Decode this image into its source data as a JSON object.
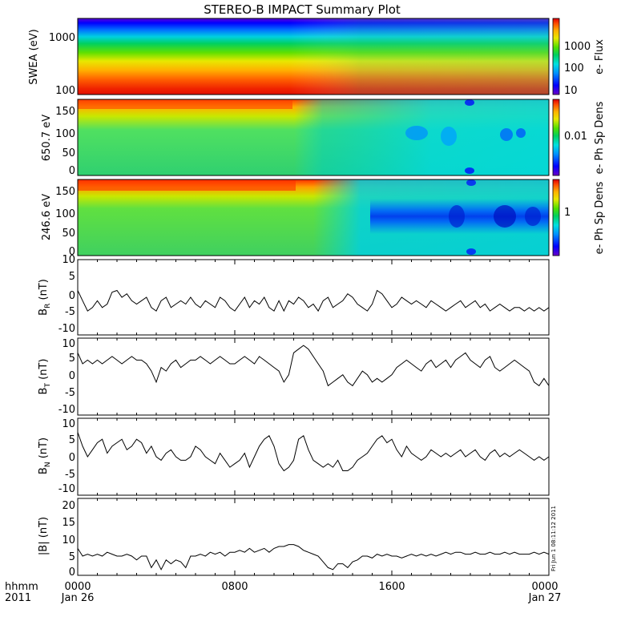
{
  "title": "STEREO-B IMPACT Summary Plot",
  "side_stamp": "Fri Jun 1 08:11:12 2011",
  "x_axis": {
    "row1_label": "hhmm",
    "row2_label": "2011",
    "tick_top": [
      "0000",
      "0800",
      "1600",
      "0000"
    ],
    "tick_bottom": [
      "Jan 26",
      "",
      "",
      "Jan 27"
    ],
    "range_hours": [
      0,
      24
    ]
  },
  "colors": {
    "line": "#000000",
    "colormap": [
      "#6a00c8",
      "#0000ff",
      "#0090ff",
      "#00e0e0",
      "#00d060",
      "#50e000",
      "#e8e800",
      "#ffb000",
      "#ff5000",
      "#e00000"
    ]
  },
  "chart_data": [
    {
      "type": "heatmap",
      "ylabel": "SWEA (eV)",
      "yscale": "log",
      "yticks": [
        "1000",
        "100"
      ],
      "ylim": [
        100,
        2000
      ],
      "colorbar_label": "e- Flux",
      "colorbar_ticks": [
        "1000",
        "100",
        "10"
      ],
      "description": "Electron flux spectrogram; highest flux at low energies (~100-300 eV, red/orange), decreasing to blue/violet above ~1500 eV; reduced flux after ~13:00."
    },
    {
      "type": "heatmap",
      "ylabel": "650.7 eV",
      "yticks": [
        "150",
        "100",
        "50",
        "0"
      ],
      "ylim": [
        0,
        180
      ],
      "colorbar_label": "e- Ph Sp Dens",
      "colorbar_ticks": [
        "0.01"
      ],
      "description": "Pitch angle distribution at 650.7 eV; red/orange near 180 deg before ~11:30, green/cyan afterwards with blue patches around 20:00-23:00."
    },
    {
      "type": "heatmap",
      "ylabel": "246.6 eV",
      "yticks": [
        "150",
        "100",
        "50",
        "0"
      ],
      "ylim": [
        0,
        180
      ],
      "colorbar_label": "e- Ph Sp Dens",
      "colorbar_ticks": [
        "1"
      ],
      "description": "Pitch angle distribution at 246.6 eV; red near 180 deg before ~12:00, blue band around 90 deg after ~15:00."
    },
    {
      "type": "line",
      "ylabel_main": "B",
      "ylabel_sub": "R",
      "ylabel_unit": " (nT)",
      "yticks": [
        "10",
        "5",
        "0",
        "-5",
        "-10"
      ],
      "ylim": [
        -12,
        10
      ],
      "series": [
        {
          "x": [
            0,
            0.25,
            0.5,
            0.75,
            1,
            1.25,
            1.5,
            1.75,
            2,
            2.25,
            2.5,
            2.75,
            3,
            3.25,
            3.5,
            3.75,
            4,
            4.25,
            4.5,
            4.75,
            5,
            5.25,
            5.5,
            5.75,
            6,
            6.25,
            6.5,
            6.75,
            7,
            7.25,
            7.5,
            7.75,
            8,
            8.25,
            8.5,
            8.75,
            9,
            9.25,
            9.5,
            9.75,
            10,
            10.25,
            10.5,
            10.75,
            11,
            11.25,
            11.5,
            11.75,
            12,
            12.25,
            12.5,
            12.75,
            13,
            13.25,
            13.5,
            13.75,
            14,
            14.25,
            14.5,
            14.75,
            15,
            15.25,
            15.5,
            15.75,
            16,
            16.25,
            16.5,
            16.75,
            17,
            17.25,
            17.5,
            17.75,
            18,
            18.25,
            18.5,
            18.75,
            19,
            19.25,
            19.5,
            19.75,
            20,
            20.25,
            20.5,
            20.75,
            21,
            21.25,
            21.5,
            21.75,
            22,
            22.25,
            22.5,
            22.75,
            23,
            23.25,
            23.5,
            23.75,
            24
          ],
          "y": [
            1,
            -2,
            -5,
            -4,
            -2,
            -4,
            -3,
            0.5,
            1,
            -1,
            0,
            -2,
            -3,
            -2,
            -1,
            -4,
            -5,
            -2,
            -1,
            -4,
            -3,
            -2,
            -3,
            -1,
            -3,
            -4,
            -2,
            -3,
            -4,
            -1,
            -2,
            -4,
            -5,
            -3,
            -1,
            -4,
            -2,
            -3,
            -1,
            -4,
            -5,
            -2,
            -5,
            -2,
            -3,
            -1,
            -2,
            -4,
            -3,
            -5,
            -2,
            -1,
            -4,
            -3,
            -2,
            0,
            -1,
            -3,
            -4,
            -5,
            -3,
            1,
            0,
            -2,
            -4,
            -3,
            -1,
            -2,
            -3,
            -2,
            -3,
            -4,
            -2,
            -3,
            -4,
            -5,
            -4,
            -3,
            -2,
            -4,
            -3,
            -2,
            -4,
            -3,
            -5,
            -4,
            -3,
            -4,
            -5,
            -4,
            -4,
            -5,
            -4,
            -5,
            -4,
            -5,
            -4
          ]
        }
      ]
    },
    {
      "type": "line",
      "ylabel_main": "B",
      "ylabel_sub": "T",
      "ylabel_unit": " (nT)",
      "yticks": [
        "10",
        "5",
        "0",
        "-5",
        "-10"
      ],
      "ylim": [
        -11,
        10
      ],
      "series": [
        {
          "x": [
            0,
            0.25,
            0.5,
            0.75,
            1,
            1.25,
            1.5,
            1.75,
            2,
            2.25,
            2.5,
            2.75,
            3,
            3.25,
            3.5,
            3.75,
            4,
            4.25,
            4.5,
            4.75,
            5,
            5.25,
            5.5,
            5.75,
            6,
            6.25,
            6.5,
            6.75,
            7,
            7.25,
            7.5,
            7.75,
            8,
            8.25,
            8.5,
            8.75,
            9,
            9.25,
            9.5,
            9.75,
            10,
            10.25,
            10.5,
            10.75,
            11,
            11.25,
            11.5,
            11.75,
            12,
            12.25,
            12.5,
            12.75,
            13,
            13.25,
            13.5,
            13.75,
            14,
            14.25,
            14.5,
            14.75,
            15,
            15.25,
            15.5,
            15.75,
            16,
            16.25,
            16.5,
            16.75,
            17,
            17.25,
            17.5,
            17.75,
            18,
            18.25,
            18.5,
            18.75,
            19,
            19.25,
            19.5,
            19.75,
            20,
            20.25,
            20.5,
            20.75,
            21,
            21.25,
            21.5,
            21.75,
            22,
            22.25,
            22.5,
            22.75,
            23,
            23.25,
            23.5,
            23.75,
            24
          ],
          "y": [
            6,
            3,
            4,
            3,
            4,
            3,
            4,
            5,
            4,
            3,
            4,
            5,
            4,
            4,
            3,
            1,
            -2,
            2,
            1,
            3,
            4,
            2,
            3,
            4,
            4,
            5,
            4,
            3,
            4,
            5,
            4,
            3,
            3,
            4,
            5,
            4,
            3,
            5,
            4,
            3,
            2,
            1,
            -2,
            0,
            6,
            7,
            8,
            7,
            5,
            3,
            1,
            -3,
            -2,
            -1,
            0,
            -2,
            -3,
            -1,
            1,
            0,
            -2,
            -1,
            -2,
            -1,
            0,
            2,
            3,
            4,
            3,
            2,
            1,
            3,
            4,
            2,
            3,
            4,
            2,
            4,
            5,
            6,
            4,
            3,
            2,
            4,
            5,
            2,
            1,
            2,
            3,
            4,
            3,
            2,
            1,
            -2,
            -3,
            -1,
            -3
          ]
        }
      ]
    },
    {
      "type": "line",
      "ylabel_main": "B",
      "ylabel_sub": "N",
      "ylabel_unit": " (nT)",
      "yticks": [
        "10",
        "5",
        "0",
        "-5",
        "-10"
      ],
      "ylim": [
        -12,
        10
      ],
      "series": [
        {
          "x": [
            0,
            0.25,
            0.5,
            0.75,
            1,
            1.25,
            1.5,
            1.75,
            2,
            2.25,
            2.5,
            2.75,
            3,
            3.25,
            3.5,
            3.75,
            4,
            4.25,
            4.5,
            4.75,
            5,
            5.25,
            5.5,
            5.75,
            6,
            6.25,
            6.5,
            6.75,
            7,
            7.25,
            7.5,
            7.75,
            8,
            8.25,
            8.5,
            8.75,
            9,
            9.25,
            9.5,
            9.75,
            10,
            10.25,
            10.5,
            10.75,
            11,
            11.25,
            11.5,
            11.75,
            12,
            12.25,
            12.5,
            12.75,
            13,
            13.25,
            13.5,
            13.75,
            14,
            14.25,
            14.5,
            14.75,
            15,
            15.25,
            15.5,
            15.75,
            16,
            16.25,
            16.5,
            16.75,
            17,
            17.25,
            17.5,
            17.75,
            18,
            18.25,
            18.5,
            18.75,
            19,
            19.25,
            19.5,
            19.75,
            20,
            20.25,
            20.5,
            20.75,
            21,
            21.25,
            21.5,
            21.75,
            22,
            22.25,
            22.5,
            22.75,
            23,
            23.25,
            23.5,
            23.75,
            24
          ],
          "y": [
            6,
            2,
            -1,
            1,
            3,
            4,
            0,
            2,
            3,
            4,
            1,
            2,
            4,
            3,
            0,
            2,
            -1,
            -2,
            0,
            1,
            -1,
            -2,
            -2,
            -1,
            2,
            1,
            -1,
            -2,
            -3,
            0,
            -2,
            -4,
            -3,
            -2,
            0,
            -4,
            -1,
            2,
            4,
            5,
            2,
            -3,
            -5,
            -4,
            -2,
            4,
            5,
            1,
            -2,
            -3,
            -4,
            -3,
            -4,
            -2,
            -5,
            -5,
            -4,
            -2,
            -1,
            0,
            2,
            4,
            5,
            3,
            4,
            1,
            -1,
            2,
            0,
            -1,
            -2,
            -1,
            1,
            0,
            -1,
            0,
            -1,
            0,
            1,
            -1,
            0,
            1,
            -1,
            -2,
            0,
            1,
            -1,
            0,
            -1,
            0,
            1,
            0,
            -1,
            -2,
            -1,
            -2,
            -1
          ]
        }
      ]
    },
    {
      "type": "line",
      "ylabel_main": "|B|",
      "ylabel_sub": "",
      "ylabel_unit": " (nT)",
      "yticks": [
        "20",
        "15",
        "10",
        "5",
        "0"
      ],
      "ylim": [
        0,
        20
      ],
      "series": [
        {
          "x": [
            0,
            0.25,
            0.5,
            0.75,
            1,
            1.25,
            1.5,
            1.75,
            2,
            2.25,
            2.5,
            2.75,
            3,
            3.25,
            3.5,
            3.75,
            4,
            4.25,
            4.5,
            4.75,
            5,
            5.25,
            5.5,
            5.75,
            6,
            6.25,
            6.5,
            6.75,
            7,
            7.25,
            7.5,
            7.75,
            8,
            8.25,
            8.5,
            8.75,
            9,
            9.25,
            9.5,
            9.75,
            10,
            10.25,
            10.5,
            10.75,
            11,
            11.25,
            11.5,
            11.75,
            12,
            12.25,
            12.5,
            12.75,
            13,
            13.25,
            13.5,
            13.75,
            14,
            14.25,
            14.5,
            14.75,
            15,
            15.25,
            15.5,
            15.75,
            16,
            16.25,
            16.5,
            16.75,
            17,
            17.25,
            17.5,
            17.75,
            18,
            18.25,
            18.5,
            18.75,
            19,
            19.25,
            19.5,
            19.75,
            20,
            20.25,
            20.5,
            20.75,
            21,
            21.25,
            21.5,
            21.75,
            22,
            22.25,
            22.5,
            22.75,
            23,
            23.25,
            23.5,
            23.75,
            24
          ],
          "y": [
            7,
            5,
            5.5,
            5,
            5.5,
            5,
            6,
            5.5,
            5,
            5,
            5.5,
            5,
            4,
            5,
            5,
            2,
            4,
            1.5,
            4,
            3,
            4,
            3.5,
            2,
            5,
            5,
            5.5,
            5,
            6,
            5.5,
            6,
            5,
            6,
            6,
            6.5,
            6,
            7,
            6,
            6.5,
            7,
            6,
            7,
            7.5,
            7.5,
            8,
            8,
            7.5,
            6.5,
            6,
            5.5,
            5,
            3.5,
            2,
            1.5,
            3,
            3,
            2,
            3.5,
            4,
            5,
            5,
            4.5,
            5.5,
            5,
            5.5,
            5,
            5,
            4.5,
            5,
            5.5,
            5,
            5.5,
            5,
            5.5,
            5,
            5.5,
            6,
            5.5,
            6,
            6,
            5.5,
            5.5,
            6,
            5.5,
            5.5,
            6,
            5.5,
            5.5,
            6,
            5.5,
            6,
            5.5,
            5.5,
            5.5,
            6,
            5.5,
            6,
            5.5
          ]
        }
      ]
    }
  ]
}
